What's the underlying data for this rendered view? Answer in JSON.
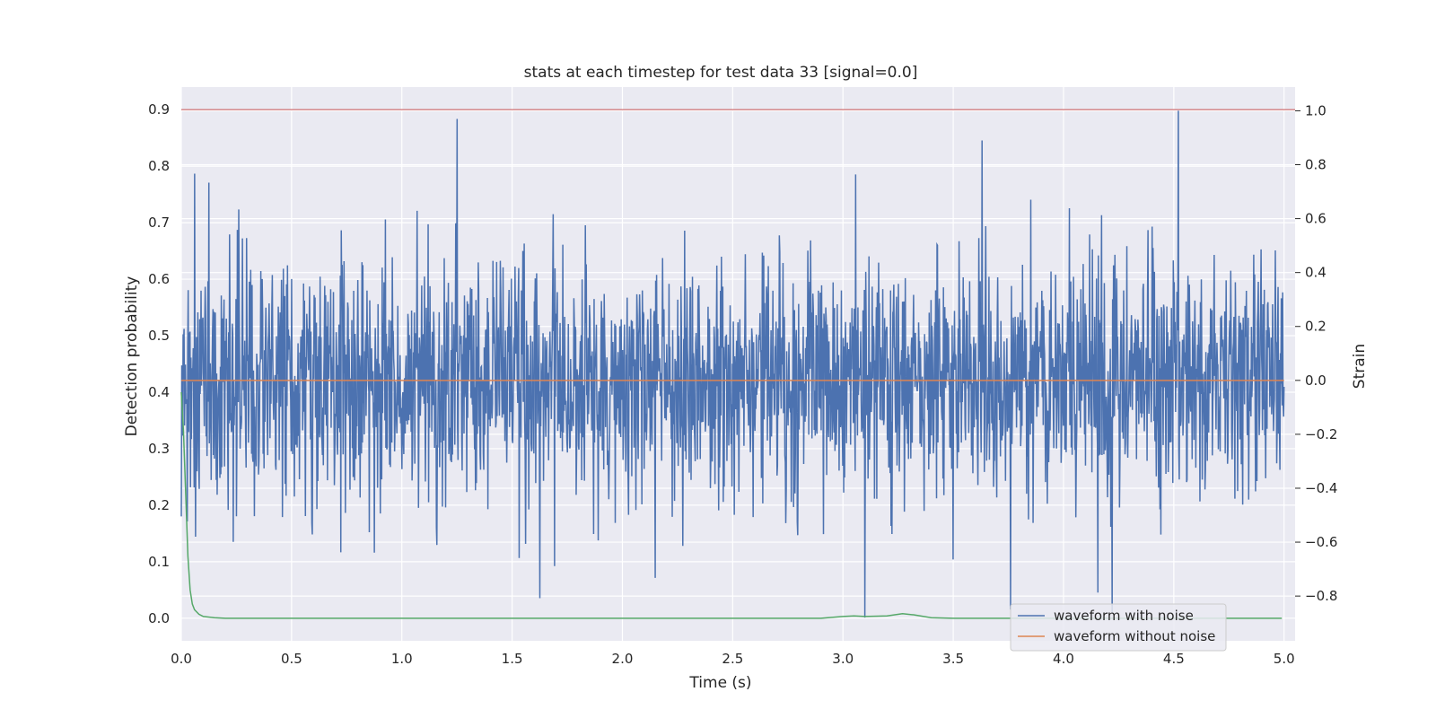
{
  "chart_data": {
    "type": "line",
    "title": "stats at each timestep for test data 33 [signal=0.0]",
    "xlabel": "Time (s)",
    "ylabel": "Detection probability",
    "y2label": "Strain",
    "xlim": [
      0.0,
      5.05
    ],
    "ylim": [
      -0.04,
      0.94
    ],
    "y2lim": [
      -0.966,
      1.088
    ],
    "x_ticks": [
      "0.0",
      "0.5",
      "1.0",
      "1.5",
      "2.0",
      "2.5",
      "3.0",
      "3.5",
      "4.0",
      "4.5",
      "5.0"
    ],
    "y_ticks": [
      "0.0",
      "0.1",
      "0.2",
      "0.3",
      "0.4",
      "0.5",
      "0.6",
      "0.7",
      "0.8",
      "0.9"
    ],
    "y2_ticks": [
      "−0.8",
      "−0.6",
      "−0.4",
      "−0.2",
      "0.0",
      "0.2",
      "0.4",
      "0.6",
      "0.8",
      "1.0"
    ],
    "grid": true,
    "legend_position": "lower-right",
    "colors": {
      "background": "#eaeaf2",
      "grid": "#ffffff",
      "waveform_with_noise": "#4c72b0",
      "waveform_without_noise": "#dd8452",
      "detection_probability": "#55a868",
      "threshold": "#c44e52"
    },
    "series": [
      {
        "name": "waveform with noise",
        "axis": "right",
        "description_of_values": "noisy strain, roughly within -0.9 to 1.0, sampled densely over 0-5 s",
        "x_range": [
          0.0,
          5.0
        ],
        "peaks": [
          {
            "x": 1.25,
            "y": 0.97
          },
          {
            "x": 4.52,
            "y": 1.0
          },
          {
            "x": 3.63,
            "y": 0.89
          },
          {
            "x": 3.1,
            "y": -0.88
          },
          {
            "x": 4.22,
            "y": -0.86
          },
          {
            "x": 3.76,
            "y": -0.85
          }
        ]
      },
      {
        "name": "waveform without noise",
        "axis": "right",
        "x": [
          0.0,
          5.0
        ],
        "y": [
          0.0,
          0.0
        ]
      },
      {
        "axis": "left",
        "x": [
          0.0,
          0.01,
          0.02,
          0.03,
          0.04,
          0.05,
          0.06,
          0.08,
          0.1,
          0.15,
          0.2,
          0.5,
          1.0,
          2.0,
          2.9,
          3.0,
          3.05,
          3.1,
          3.2,
          3.27,
          3.32,
          3.4,
          3.5,
          4.0,
          4.5,
          4.99
        ],
        "y": [
          0.4,
          0.33,
          0.22,
          0.11,
          0.05,
          0.025,
          0.015,
          0.007,
          0.003,
          0.001,
          0.0,
          0.0,
          0.0,
          0.0,
          0.0,
          0.003,
          0.004,
          0.003,
          0.004,
          0.008,
          0.006,
          0.001,
          0.0,
          0.0,
          0.0,
          0.0
        ]
      },
      {
        "axis": "left",
        "x": [
          0.0,
          5.05
        ],
        "y": [
          0.9,
          0.9
        ]
      }
    ]
  }
}
